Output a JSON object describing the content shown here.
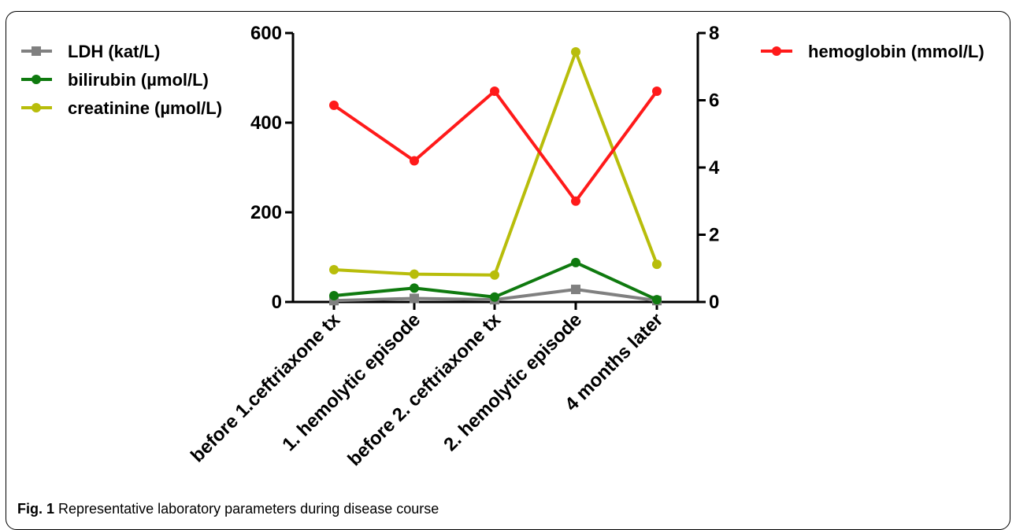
{
  "caption": {
    "label": "Fig. 1",
    "text": "Representative laboratory parameters during disease course"
  },
  "chart_data": {
    "type": "line",
    "categories": [
      "before 1.ceftriaxone tx",
      "1. hemolytic episode",
      "before 2. ceftriaxone tx",
      "2. hemolytic episode",
      "4 months later"
    ],
    "y_left": {
      "range": [
        0,
        600
      ],
      "ticks": [
        0,
        200,
        400,
        600
      ]
    },
    "y_right": {
      "range": [
        0,
        8
      ],
      "ticks": [
        0,
        2,
        4,
        6,
        8
      ]
    },
    "grid": false,
    "legend_left_placement": "top-left",
    "legend_right_placement": "top-right",
    "series": [
      {
        "name": "LDH (kat/L)",
        "axis": "left",
        "color": "#808080",
        "marker": "square",
        "values": [
          3,
          8,
          5,
          28,
          3
        ]
      },
      {
        "name": "bilirubin (µmol/L)",
        "axis": "left",
        "color": "#0f7a0f",
        "marker": "circle",
        "values": [
          14,
          31,
          11,
          88,
          5
        ]
      },
      {
        "name": "creatinine (µmol/L)",
        "axis": "left",
        "color": "#b8bd0b",
        "marker": "circle",
        "values": [
          72,
          62,
          60,
          558,
          84
        ]
      },
      {
        "name": "hemoglobin (mmol/L)",
        "axis": "right",
        "color": "#ff1a1a",
        "marker": "circle",
        "values": [
          5.85,
          4.2,
          6.27,
          3.0,
          6.27
        ]
      }
    ]
  }
}
